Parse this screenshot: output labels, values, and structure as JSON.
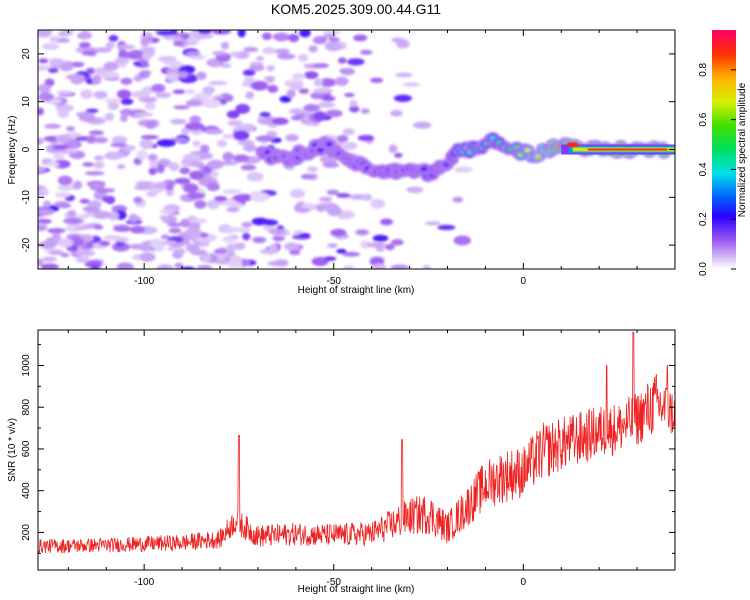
{
  "chart_data": [
    {
      "type": "heatmap",
      "title": "KOM5.2025.309.00.44.G11",
      "xlabel": "Height of straight line (km)",
      "ylabel": "Frequency (Hz)",
      "xlim": [
        -128,
        40
      ],
      "ylim": [
        -25,
        25
      ],
      "xticks": [
        -100,
        -50,
        0
      ],
      "xtick_labels": [
        "-100",
        "-50",
        "0"
      ],
      "yticks": [
        -20,
        -10,
        0,
        10,
        20
      ],
      "ytick_labels": [
        "-20",
        "-10",
        "0",
        "10",
        "20"
      ],
      "colorbar": {
        "label": "Normalized spectral amplitude",
        "range": [
          0,
          0.96
        ],
        "ticks": [
          0.0,
          0.2,
          0.4,
          0.6,
          0.8
        ],
        "tick_labels": [
          "0.0",
          "0.2",
          "0.4",
          "0.6",
          "0.8"
        ]
      },
      "ridge": {
        "description_points": [
          {
            "x": -69,
            "y": -1,
            "amp": 0.22
          },
          {
            "x": -63,
            "y": -2,
            "amp": 0.18
          },
          {
            "x": -52,
            "y": 1,
            "amp": 0.2
          },
          {
            "x": -44,
            "y": -3,
            "amp": 0.2
          },
          {
            "x": -38,
            "y": -5,
            "amp": 0.25
          },
          {
            "x": -30,
            "y": -4,
            "amp": 0.22
          },
          {
            "x": -25,
            "y": -5,
            "amp": 0.25
          },
          {
            "x": -20,
            "y": -3,
            "amp": 0.2
          },
          {
            "x": -17,
            "y": 0,
            "amp": 0.35
          },
          {
            "x": -12,
            "y": 0,
            "amp": 0.55
          },
          {
            "x": -8,
            "y": 2,
            "amp": 0.4
          },
          {
            "x": -3,
            "y": 0,
            "amp": 0.6
          },
          {
            "x": 3,
            "y": -1,
            "amp": 0.75
          },
          {
            "x": 10,
            "y": 1,
            "amp": 0.9
          },
          {
            "x": 20,
            "y": 0,
            "amp": 0.95
          },
          {
            "x": 38,
            "y": 0,
            "amp": 0.9
          }
        ]
      }
    },
    {
      "type": "line",
      "title": "",
      "xlabel": "Height of straight line (km)",
      "ylabel": "SNR (10 * v/v)",
      "xlim": [
        -128,
        40
      ],
      "ylim": [
        20,
        1170
      ],
      "xticks": [
        -100,
        -50,
        0
      ],
      "xtick_labels": [
        "-100",
        "-50",
        "0"
      ],
      "yticks": [
        200,
        400,
        600,
        800,
        1000
      ],
      "ytick_labels": [
        "200",
        "400",
        "600",
        "800",
        "1000"
      ],
      "series": [
        {
          "name": "SNR",
          "color": "#ee2222",
          "trend_x": [
            -128,
            -110,
            -90,
            -80,
            -76,
            -70,
            -60,
            -50,
            -40,
            -30,
            -25,
            -20,
            -15,
            -10,
            -5,
            0,
            5,
            10,
            15,
            20,
            25,
            30,
            35,
            40
          ],
          "trend_base": [
            120,
            125,
            135,
            150,
            230,
            160,
            170,
            165,
            170,
            240,
            250,
            190,
            280,
            380,
            420,
            440,
            530,
            570,
            600,
            630,
            650,
            690,
            760,
            720
          ],
          "trend_spread": [
            70,
            70,
            80,
            90,
            130,
            110,
            110,
            110,
            120,
            180,
            200,
            150,
            200,
            240,
            260,
            250,
            280,
            260,
            260,
            260,
            250,
            260,
            300,
            220
          ],
          "peaks": [
            {
              "x": -75,
              "y": 665
            },
            {
              "x": -32,
              "y": 645
            },
            {
              "x": 22,
              "y": 1000
            },
            {
              "x": 29,
              "y": 1160
            },
            {
              "x": 38,
              "y": 1000
            }
          ]
        }
      ]
    }
  ],
  "colors": {
    "background": "#ffffff",
    "axis": "#000000",
    "snr_line": "#ee2222"
  }
}
